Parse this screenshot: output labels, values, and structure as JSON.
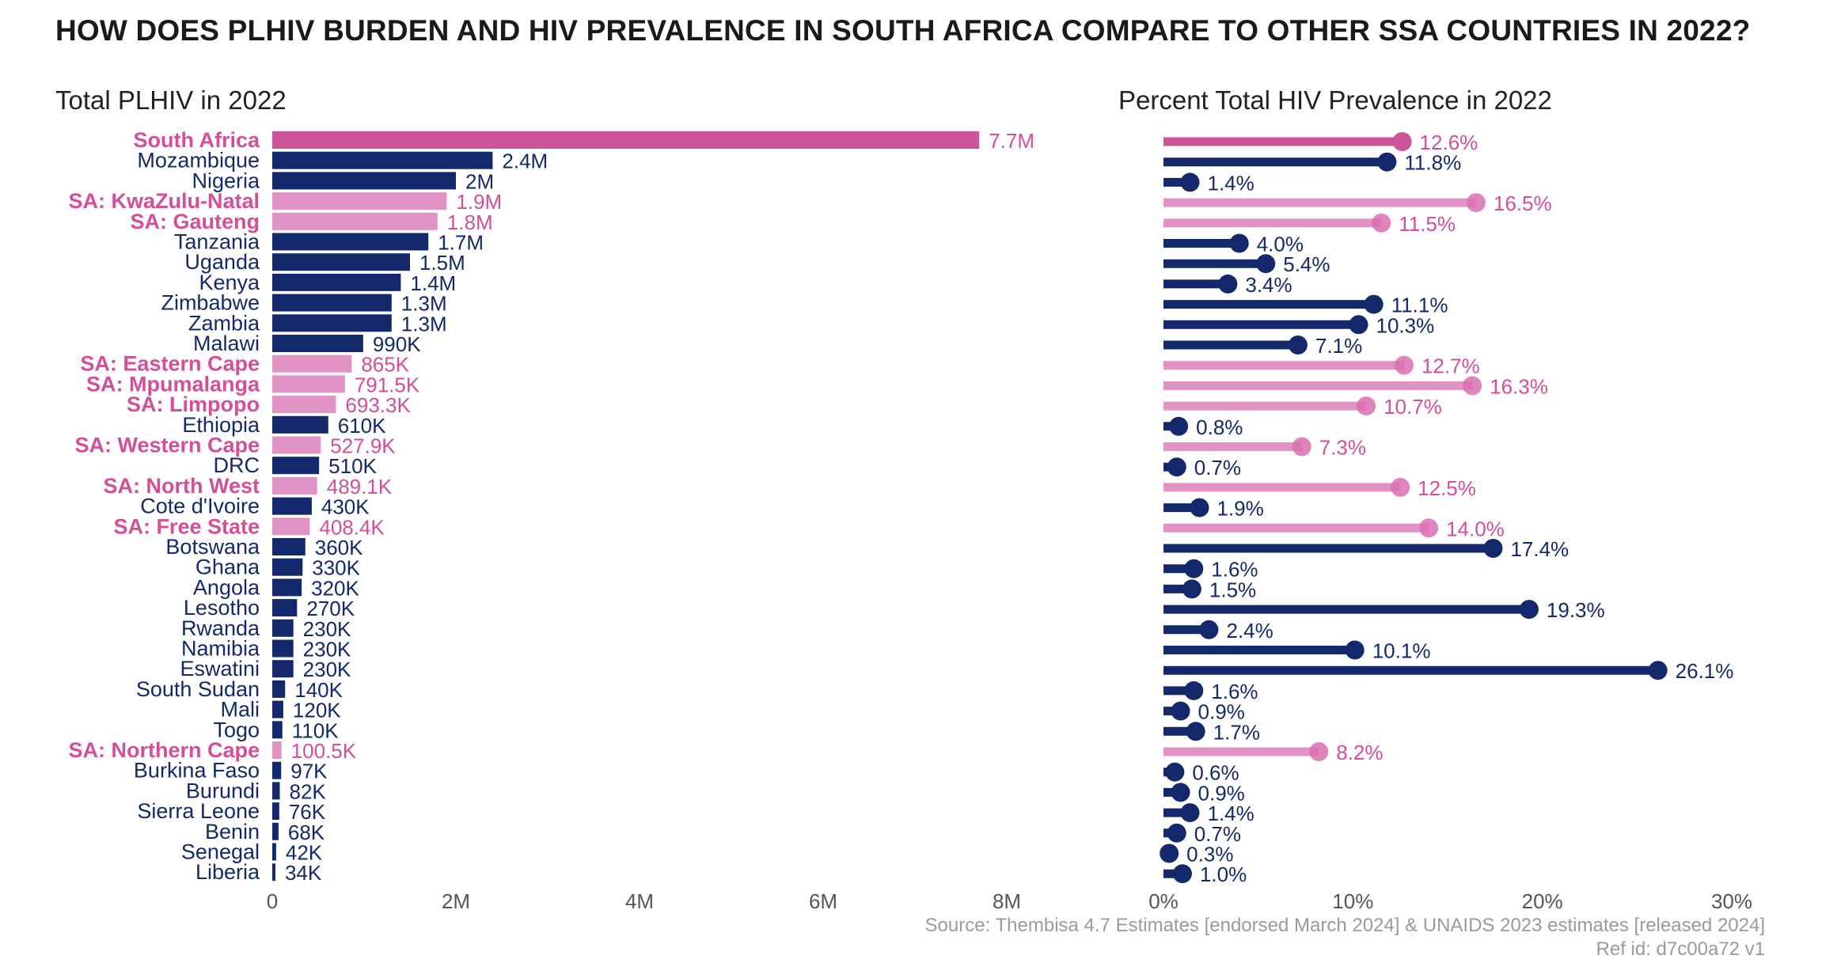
{
  "title": "HOW DOES PLHIV BURDEN AND HIV PREVALENCE IN SOUTH AFRICA COMPARE TO OTHER SSA COUNTRIES IN 2022?",
  "source": "Source: Thembisa 4.7 Estimates [endorsed March 2024] & UNAIDS 2023 estimates [released 2024]",
  "ref_id": "Ref id: d7c00a72 v1",
  "colors": {
    "sa_primary": "#cc5499",
    "sa_province": "#e093c4",
    "country": "#13296b",
    "sa_label": "#d44e98"
  },
  "chart_data": [
    {
      "type": "bar",
      "orientation": "horizontal",
      "title": "Total PLHIV in 2022",
      "xlim": [
        0,
        8000000
      ],
      "x_ticks": [
        "0",
        "2M",
        "4M",
        "6M",
        "8M"
      ],
      "categories": [
        "South Africa",
        "Mozambique",
        "Nigeria",
        "SA: KwaZulu-Natal",
        "SA: Gauteng",
        "Tanzania",
        "Uganda",
        "Kenya",
        "Zimbabwe",
        "Zambia",
        "Malawi",
        "SA: Eastern Cape",
        "SA: Mpumalanga",
        "SA: Limpopo",
        "Ethiopia",
        "SA: Western Cape",
        "DRC",
        "SA: North West",
        "Cote d'Ivoire",
        "SA: Free State",
        "Botswana",
        "Ghana",
        "Angola",
        "Lesotho",
        "Rwanda",
        "Namibia",
        "Eswatini",
        "South Sudan",
        "Mali",
        "Togo",
        "SA: Northern Cape",
        "Burkina Faso",
        "Burundi",
        "Sierra Leone",
        "Benin",
        "Senegal",
        "Liberia"
      ],
      "group": [
        "sa",
        "country",
        "country",
        "province",
        "province",
        "country",
        "country",
        "country",
        "country",
        "country",
        "country",
        "province",
        "province",
        "province",
        "country",
        "province",
        "country",
        "province",
        "country",
        "province",
        "country",
        "country",
        "country",
        "country",
        "country",
        "country",
        "country",
        "country",
        "country",
        "country",
        "province",
        "country",
        "country",
        "country",
        "country",
        "country",
        "country"
      ],
      "values": [
        7700000,
        2400000,
        2000000,
        1900000,
        1800000,
        1700000,
        1500000,
        1400000,
        1300000,
        1300000,
        990000,
        865000,
        791500,
        693300,
        610000,
        527900,
        510000,
        489100,
        430000,
        408400,
        360000,
        330000,
        320000,
        270000,
        230000,
        230000,
        230000,
        140000,
        120000,
        110000,
        100500,
        97000,
        82000,
        76000,
        68000,
        42000,
        34000
      ],
      "labels": [
        "7.7M",
        "2.4M",
        "2M",
        "1.9M",
        "1.8M",
        "1.7M",
        "1.5M",
        "1.4M",
        "1.3M",
        "1.3M",
        "990K",
        "865K",
        "791.5K",
        "693.3K",
        "610K",
        "527.9K",
        "510K",
        "489.1K",
        "430K",
        "408.4K",
        "360K",
        "330K",
        "320K",
        "270K",
        "230K",
        "230K",
        "230K",
        "140K",
        "120K",
        "110K",
        "100.5K",
        "97K",
        "82K",
        "76K",
        "68K",
        "42K",
        "34K"
      ]
    },
    {
      "type": "lollipop",
      "orientation": "horizontal",
      "title": "Percent Total HIV Prevalence in 2022",
      "xlim": [
        0,
        30
      ],
      "x_ticks": [
        "0%",
        "10%",
        "20%",
        "30%"
      ],
      "values": [
        12.6,
        11.8,
        1.4,
        16.5,
        11.5,
        4.0,
        5.4,
        3.4,
        11.1,
        10.3,
        7.1,
        12.7,
        16.3,
        10.7,
        0.8,
        7.3,
        0.7,
        12.5,
        1.9,
        14.0,
        17.4,
        1.6,
        1.5,
        19.3,
        2.4,
        10.1,
        26.1,
        1.6,
        0.9,
        1.7,
        8.2,
        0.6,
        0.9,
        1.4,
        0.7,
        0.3,
        1.0
      ],
      "labels": [
        "12.6%",
        "11.8%",
        "1.4%",
        "16.5%",
        "11.5%",
        "4.0%",
        "5.4%",
        "3.4%",
        "11.1%",
        "10.3%",
        "7.1%",
        "12.7%",
        "16.3%",
        "10.7%",
        "0.8%",
        "7.3%",
        "0.7%",
        "12.5%",
        "1.9%",
        "14.0%",
        "17.4%",
        "1.6%",
        "1.5%",
        "19.3%",
        "2.4%",
        "10.1%",
        "26.1%",
        "1.6%",
        "0.9%",
        "1.7%",
        "8.2%",
        "0.6%",
        "0.9%",
        "1.4%",
        "0.7%",
        "0.3%",
        "1.0%"
      ]
    }
  ]
}
